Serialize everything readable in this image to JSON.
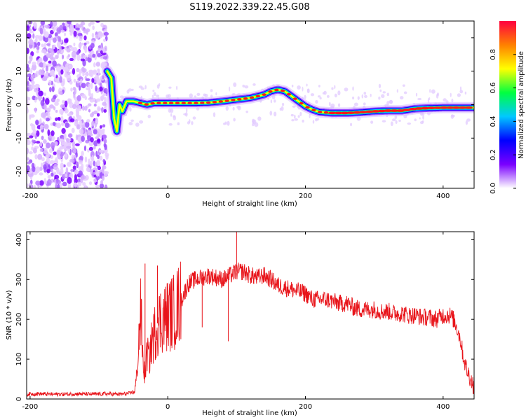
{
  "title": "S119.2022.339.22.45.G08",
  "chart_data": [
    {
      "type": "heatmap",
      "xlabel": "Height of straight line (km)",
      "ylabel": "Frequency (Hz)",
      "xlim": [
        -205,
        445
      ],
      "ylim": [
        -25,
        25
      ],
      "x_ticks": [
        -200,
        0,
        200,
        400
      ],
      "x_tick_labels": [
        "-200",
        "0",
        "200",
        "400"
      ],
      "y_ticks": [
        -20,
        -10,
        0,
        10,
        20
      ],
      "y_tick_labels": [
        "-20",
        "-10",
        "0",
        "10",
        "20"
      ],
      "colorbar": {
        "label": "Normalized spectral amplitude",
        "range": [
          0,
          1
        ],
        "ticks": [
          0,
          0.2,
          0.4,
          0.6,
          0.8
        ],
        "tick_labels": [
          "0.0",
          "0.2",
          "0.4",
          "0.6",
          "0.8"
        ],
        "colormap": [
          "#ffffff",
          "#7a00ff",
          "#0000ff",
          "#00c8ff",
          "#00ff40",
          "#ffff00",
          "#ff8000",
          "#ff0040"
        ]
      },
      "noise_region_x": [
        -205,
        -88
      ],
      "ridge": {
        "x": [
          -88,
          -82,
          -78,
          -74,
          -70,
          -66,
          -60,
          -50,
          -40,
          -30,
          -20,
          0,
          20,
          40,
          60,
          80,
          100,
          120,
          140,
          150,
          160,
          170,
          180,
          190,
          200,
          210,
          220,
          240,
          260,
          280,
          300,
          320,
          340,
          360,
          380,
          400,
          420,
          445
        ],
        "y": [
          10,
          8,
          -4,
          -8,
          0,
          -2,
          1,
          1,
          0.5,
          0,
          0.5,
          0.5,
          0.5,
          0.5,
          0.6,
          1,
          1.5,
          2,
          3,
          4,
          4.5,
          4,
          2.5,
          1,
          -0.5,
          -1.5,
          -2.2,
          -2.5,
          -2.5,
          -2.3,
          -2,
          -1.8,
          -1.8,
          -1.2,
          -1,
          -0.9,
          -0.9,
          -0.9
        ]
      }
    },
    {
      "type": "line",
      "xlabel": "Height of straight line (km)",
      "ylabel": "SNR (10 * v/v)",
      "xlim": [
        -205,
        445
      ],
      "ylim": [
        0,
        420
      ],
      "x_ticks": [
        -200,
        0,
        200,
        400
      ],
      "x_tick_labels": [
        "-200",
        "0",
        "200",
        "400"
      ],
      "y_ticks": [
        0,
        100,
        200,
        300,
        400
      ],
      "y_tick_labels": [
        "0",
        "100",
        "200",
        "300",
        "400"
      ],
      "color": "#e8141a",
      "series": [
        {
          "x": [
            -205,
            -190,
            -170,
            -150,
            -130,
            -110,
            -90,
            -70,
            -55,
            -48,
            -45,
            -42,
            -40,
            -38,
            -36,
            -33,
            -30,
            -27,
            -25,
            -20,
            -15,
            -10,
            0,
            10,
            20,
            25,
            30,
            40,
            50,
            60,
            70,
            80,
            90,
            100,
            110,
            120,
            130,
            140,
            150,
            160,
            170,
            180,
            190,
            200,
            210,
            220,
            230,
            240,
            250,
            260,
            270,
            280,
            290,
            300,
            310,
            320,
            330,
            340,
            350,
            360,
            370,
            380,
            390,
            400,
            410,
            415,
            420,
            425,
            430,
            435,
            440,
            445
          ],
          "y": [
            12,
            13,
            12,
            12,
            13,
            12,
            13,
            12,
            14,
            20,
            60,
            150,
            220,
            180,
            90,
            60,
            120,
            100,
            130,
            160,
            190,
            200,
            210,
            220,
            250,
            270,
            290,
            300,
            305,
            310,
            305,
            300,
            310,
            320,
            320,
            310,
            305,
            310,
            300,
            285,
            280,
            275,
            270,
            265,
            250,
            250,
            250,
            245,
            240,
            240,
            230,
            225,
            225,
            225,
            220,
            220,
            215,
            215,
            210,
            210,
            205,
            205,
            200,
            210,
            210,
            200,
            180,
            150,
            100,
            70,
            50,
            30
          ]
        }
      ]
    }
  ]
}
